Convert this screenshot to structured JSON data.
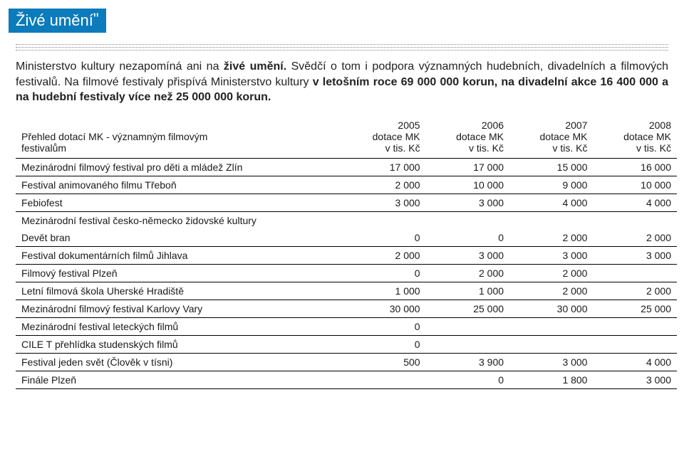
{
  "header": {
    "title_open_quote": "„",
    "title_text": "Živé umění",
    "title_close_quote": "\""
  },
  "paragraph": {
    "p1_prefix": "Ministerstvo kultury nezapomíná ani na ",
    "p1_bold": "živé umění.",
    "p1_after": " Svědčí o tom i podpora významných hudebních, divadelních a filmových festivalů. Na filmové festivaly přispívá Ministerstvo kultury ",
    "p1_bold2": "v letošním roce 69 000 000 korun, na divadelní akce 16 400 000 a na hudební festivaly více než 25 000 000 korun."
  },
  "table": {
    "title_line1": "Přehled dotací MK - významným filmovým",
    "title_line2": "festivalům",
    "year_cols": [
      {
        "year": "2005",
        "sub1": "dotace MK",
        "sub2": "v tis. Kč"
      },
      {
        "year": "2006",
        "sub1": "dotace MK",
        "sub2": "v tis. Kč"
      },
      {
        "year": "2007",
        "sub1": "dotace MK",
        "sub2": "v tis. Kč"
      },
      {
        "year": "2008",
        "sub1": "dotace MK",
        "sub2": "v tis. Kč"
      }
    ],
    "rows": [
      {
        "name": "Mezinárodní filmový festival pro děti a mládež Zlín",
        "v": [
          "17 000",
          "17 000",
          "15 000",
          "16 000"
        ]
      },
      {
        "name": "Festival animovaného filmu Třeboň",
        "v": [
          "2 000",
          "10 000",
          "9 000",
          "10 000"
        ]
      },
      {
        "name": "Febiofest",
        "v": [
          "3 000",
          "3 000",
          "4 000",
          "4 000"
        ]
      },
      {
        "name": "Mezinárodní festival česko-německo židovské kultury\nDevět bran",
        "v": [
          "0",
          "0",
          "2 000",
          "2 000"
        ],
        "two_line": true
      },
      {
        "name": "Festival dokumentárních filmů Jihlava",
        "v": [
          "2 000",
          "3 000",
          "3 000",
          "3 000"
        ]
      },
      {
        "name": "Filmový festival Plzeň",
        "v": [
          "0",
          "2 000",
          "2 000",
          ""
        ]
      },
      {
        "name": "Letní filmová škola Uherské Hradiště",
        "v": [
          "1 000",
          "1 000",
          "2 000",
          "2 000"
        ]
      },
      {
        "name": "Mezinárodní filmový festival Karlovy Vary",
        "v": [
          "30 000",
          "25 000",
          "30 000",
          "25 000"
        ]
      },
      {
        "name": "Mezinárodní festival leteckých filmů",
        "v": [
          "0",
          "",
          "",
          ""
        ]
      },
      {
        "name": "CILE  T přehlídka studenských filmů",
        "v": [
          "0",
          "",
          "",
          ""
        ]
      },
      {
        "name": "Festival jeden svět (Člověk v tísni)",
        "v": [
          "500",
          "3 900",
          "3 000",
          "4 000"
        ]
      },
      {
        "name": "Finále Plzeň",
        "v": [
          "",
          "0",
          "1 800",
          "3 000"
        ]
      }
    ]
  },
  "colors": {
    "header_bg": "#0b7bbb",
    "text": "#1a1a1a",
    "rule": "#888888",
    "table_border": "#000000"
  }
}
